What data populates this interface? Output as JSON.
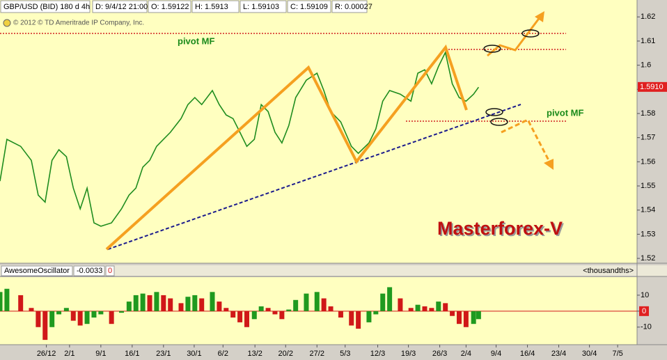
{
  "chart_data": [
    {
      "type": "line",
      "symbol": "GBP/USD (BID) 180 d 4h",
      "readouts": [
        "D: 9/4/12 21:00",
        "O: 1.59122",
        "H: 1.5913",
        "L: 1.59103",
        "C: 1.59109",
        "R: 0.00027"
      ],
      "copyright": "© 2012 © TD Ameritrade IP Company, Inc.",
      "annotations": [
        "pivot MF",
        "pivot MF",
        "Masterforex-V"
      ],
      "xlim": [
        0,
        101.7
      ],
      "ylim": [
        1.518,
        1.627
      ],
      "yticks": [
        1.52,
        1.53,
        1.54,
        1.55,
        1.56,
        1.57,
        1.58,
        1.59,
        1.6,
        1.61,
        1.62
      ],
      "last_price": {
        "value": 1.591,
        "label": "1.5910"
      },
      "x": [
        0,
        1.1,
        3.3,
        5,
        6.1,
        7.2,
        8.3,
        9.4,
        10.6,
        11.7,
        12.8,
        13.9,
        15,
        16.1,
        17.8,
        19.4,
        20.6,
        21.7,
        22.8,
        23.9,
        25,
        26.1,
        27.2,
        28.9,
        30,
        31.1,
        32.2,
        33.9,
        35,
        36.1,
        37.2,
        38.3,
        39.4,
        40.6,
        41.7,
        42.8,
        43.9,
        45,
        46.1,
        47.2,
        48.9,
        50.6,
        51.7,
        52.8,
        54.4,
        56.1,
        57.2,
        58.9,
        60,
        61.1,
        62.2,
        63.9,
        65.6,
        66.7,
        67.8,
        68.9,
        70,
        71.1,
        72.2,
        73.3,
        74.4,
        75.6,
        76.4
      ],
      "series": [
        {
          "color": "#1e8c1e",
          "values": [
            1.552,
            1.5693,
            1.5664,
            1.5606,
            1.5462,
            1.5433,
            1.5606,
            1.565,
            1.5621,
            1.5491,
            1.5405,
            1.5491,
            1.5347,
            1.5333,
            1.5347,
            1.5405,
            1.5462,
            1.5491,
            1.5578,
            1.5606,
            1.5664,
            1.5693,
            1.5722,
            1.5779,
            1.5837,
            1.5866,
            1.5837,
            1.5895,
            1.5837,
            1.5794,
            1.5779,
            1.5722,
            1.5664,
            1.5693,
            1.5837,
            1.5808,
            1.5722,
            1.5678,
            1.575,
            1.5866,
            1.5938,
            1.5967,
            1.5895,
            1.5808,
            1.5765,
            1.5664,
            1.5635,
            1.5678,
            1.5736,
            1.5851,
            1.5895,
            1.588,
            1.5851,
            1.5967,
            1.5981,
            1.5923,
            1.5995,
            1.6053,
            1.5923,
            1.5866,
            1.5851,
            1.588,
            1.5909
          ]
        }
      ]
    },
    {
      "type": "bar",
      "title": "AwesomeOscillator",
      "value_readout": -0.0033,
      "level_readout": 0,
      "units": "<thousandths>",
      "colors": {
        "up": "#1f9a1f",
        "down": "#d01818"
      },
      "xlim": [
        0,
        101.7
      ],
      "ylim": [
        -21,
        21.3
      ],
      "yticks": [
        10,
        0,
        -10
      ],
      "xticks": [
        {
          "value": 7.4,
          "label": "26/12"
        },
        {
          "value": 11.1,
          "label": "2/1"
        },
        {
          "value": 16.1,
          "label": "9/1"
        },
        {
          "value": 21.1,
          "label": "16/1"
        },
        {
          "value": 26.1,
          "label": "23/1"
        },
        {
          "value": 31,
          "label": "30/1"
        },
        {
          "value": 35.6,
          "label": "6/2"
        },
        {
          "value": 40.7,
          "label": "13/2"
        },
        {
          "value": 45.6,
          "label": "20/2"
        },
        {
          "value": 50.6,
          "label": "27/2"
        },
        {
          "value": 55.1,
          "label": "5/3"
        },
        {
          "value": 60.3,
          "label": "12/3"
        },
        {
          "value": 65.2,
          "label": "19/3"
        },
        {
          "value": 70.2,
          "label": "26/3"
        },
        {
          "value": 74.4,
          "label": "2/4"
        },
        {
          "value": 79.2,
          "label": "9/4"
        },
        {
          "value": 84.2,
          "label": "16/4"
        },
        {
          "value": 89.2,
          "label": "23/4"
        },
        {
          "value": 94.1,
          "label": "30/4"
        },
        {
          "value": 98.6,
          "label": "7/5"
        }
      ],
      "x": [
        0,
        1.1,
        3.3,
        5,
        6.1,
        7.2,
        8.3,
        9.4,
        10.6,
        11.7,
        12.8,
        13.9,
        15,
        16.1,
        17.8,
        19.4,
        20.6,
        21.7,
        22.8,
        23.9,
        25,
        26.1,
        27.2,
        28.9,
        30,
        31.1,
        32.2,
        33.9,
        35,
        36.1,
        37.2,
        38.3,
        39.4,
        40.6,
        41.7,
        42.8,
        43.9,
        45,
        46.1,
        47.2,
        48.9,
        50.6,
        51.7,
        52.8,
        54.4,
        56.1,
        57.2,
        58.9,
        60,
        61.1,
        62.2,
        63.9,
        65.6,
        66.7,
        67.8,
        68.9,
        70,
        71.1,
        72.2,
        73.3,
        74.4,
        75.6,
        76.4
      ],
      "values": [
        12,
        14,
        10,
        2,
        -10,
        -18,
        -10,
        -2,
        2,
        -6,
        -9,
        -8,
        -4,
        -2,
        -8,
        -1,
        6,
        10,
        11,
        10,
        12,
        10,
        8,
        5,
        9,
        10,
        8,
        12,
        6,
        2,
        -4,
        -7,
        -10,
        -5,
        3,
        2,
        -2,
        -5,
        1,
        7,
        11,
        12,
        8,
        3,
        -4,
        -9,
        -11,
        -7,
        -2,
        11,
        15,
        8,
        2,
        4,
        3,
        2,
        6,
        5,
        -3,
        -8,
        -10,
        -8,
        -5
      ]
    }
  ]
}
